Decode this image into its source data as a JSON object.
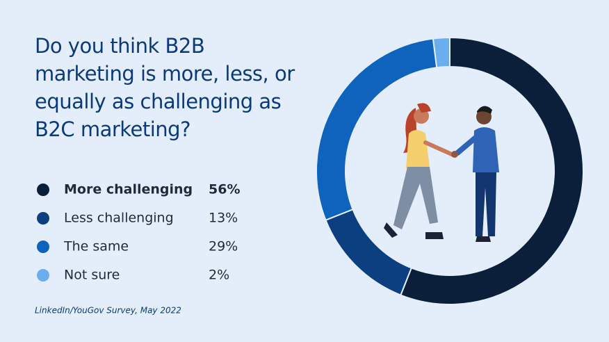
{
  "chart_data": {
    "type": "donut",
    "title": "Do you think B2B marketing is more, less, or equally as challenging as B2C marketing?",
    "categories": [
      "More challenging",
      "Less challenging",
      "The same",
      "Not sure"
    ],
    "values": [
      56,
      13,
      29,
      2
    ],
    "value_labels": [
      "56%",
      "13%",
      "29%",
      "2%"
    ],
    "colors": [
      "#0b1f3a",
      "#0b3f80",
      "#0e63bd",
      "#6aaef0"
    ],
    "source": "LinkedIn/YouGov Survey, May 2022"
  }
}
